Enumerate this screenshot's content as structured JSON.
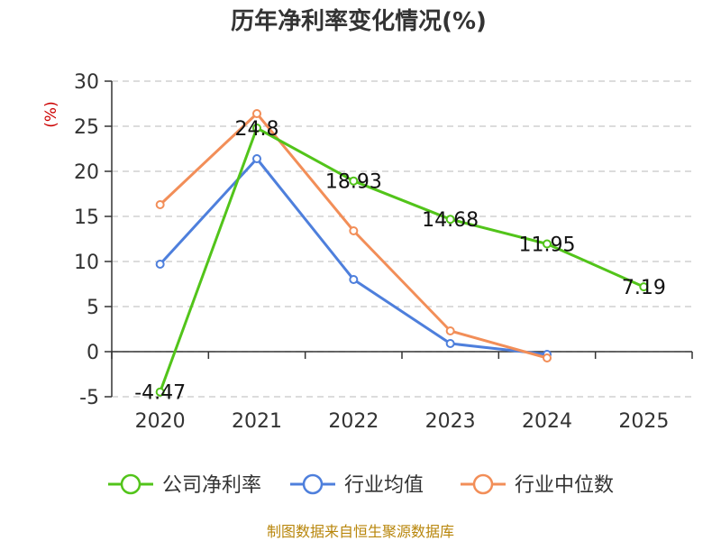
{
  "chart_data": {
    "type": "line",
    "title": "历年净利率变化情况(%)",
    "ylabel": "(%)",
    "categories": [
      "2020",
      "2021",
      "2022",
      "2023",
      "2024",
      "2025"
    ],
    "ylim": [
      -5,
      30
    ],
    "yticks": [
      -5,
      0,
      5,
      10,
      15,
      20,
      25,
      30
    ],
    "grid": true,
    "legend_position": "bottom",
    "series": [
      {
        "name": "公司净利率",
        "color": "#52c41a",
        "values": [
          -4.47,
          24.8,
          18.93,
          14.68,
          11.95,
          7.19
        ],
        "labels": [
          "-4.47",
          "24.8",
          "18.93",
          "14.68",
          "11.95",
          "7.19"
        ]
      },
      {
        "name": "行业均值",
        "color": "#4e7fdc",
        "values": [
          9.7,
          21.4,
          8.0,
          0.9,
          -0.3,
          null
        ]
      },
      {
        "name": "行业中位数",
        "color": "#f28e58",
        "values": [
          16.3,
          26.4,
          13.4,
          2.3,
          -0.7,
          null
        ]
      }
    ],
    "source": "制图数据来自恒生聚源数据库"
  }
}
